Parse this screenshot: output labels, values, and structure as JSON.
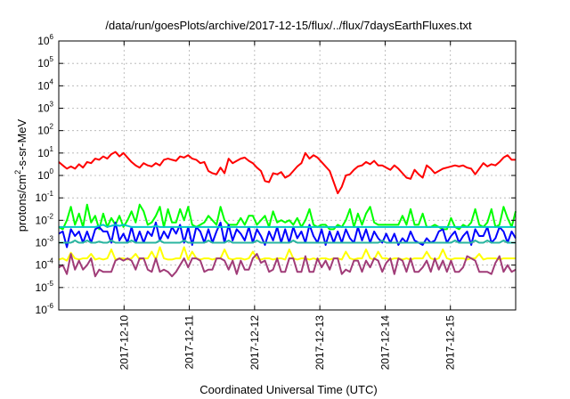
{
  "chart_data": {
    "type": "line",
    "title": "/data/run/goesPlots/archive/2017-12-15/flux/../flux/7daysEarthFluxes.txt",
    "xlabel": "Coordinated Universal Time (UTC)",
    "ylabel": "protons/cm2-s-sr-MeV",
    "y_scale": "log",
    "ylim": [
      1e-06,
      1000000.0
    ],
    "xlim": [
      "2017-12-09 00:00",
      "2017-12-16 00:00"
    ],
    "grid": true,
    "y_ticks": [
      {
        "value": 1e-06,
        "base": "10",
        "exp": "-6"
      },
      {
        "value": 1e-05,
        "base": "10",
        "exp": "-5"
      },
      {
        "value": 0.0001,
        "base": "10",
        "exp": "-4"
      },
      {
        "value": 0.001,
        "base": "10",
        "exp": "-3"
      },
      {
        "value": 0.01,
        "base": "10",
        "exp": "-2"
      },
      {
        "value": 0.1,
        "base": "10",
        "exp": "-1"
      },
      {
        "value": 1,
        "base": "10",
        "exp": "0"
      },
      {
        "value": 10,
        "base": "10",
        "exp": "1"
      },
      {
        "value": 100,
        "base": "10",
        "exp": "2"
      },
      {
        "value": 1000,
        "base": "10",
        "exp": "3"
      },
      {
        "value": 10000,
        "base": "10",
        "exp": "4"
      },
      {
        "value": 100000,
        "base": "10",
        "exp": "5"
      },
      {
        "value": 1000000,
        "base": "10",
        "exp": "6"
      }
    ],
    "x_ticks": [
      {
        "day": 1,
        "label": "2017-12-10"
      },
      {
        "day": 2,
        "label": "2017-12-11"
      },
      {
        "day": 3,
        "label": "2017-12-12"
      },
      {
        "day": 4,
        "label": "2017-12-13"
      },
      {
        "day": 5,
        "label": "2017-12-14"
      },
      {
        "day": 6,
        "label": "2017-12-15"
      }
    ],
    "series": [
      {
        "color": "#ff0000",
        "log_values": [
          0.6,
          0.45,
          0.3,
          0.4,
          0.3,
          0.5,
          0.35,
          0.6,
          0.55,
          0.75,
          0.7,
          0.85,
          0.75,
          0.95,
          1.05,
          0.85,
          1.0,
          0.8,
          0.6,
          0.45,
          0.35,
          0.55,
          0.45,
          0.4,
          0.55,
          0.45,
          0.7,
          0.75,
          0.7,
          0.65,
          0.85,
          0.8,
          0.9,
          0.75,
          0.7,
          0.55,
          0.6,
          0.2,
          0.1,
          0.05,
          0.35,
          0.1,
          0.75,
          0.55,
          0.65,
          0.75,
          0.8,
          0.65,
          0.55,
          0.35,
          0.2,
          -0.25,
          -0.3,
          0.1,
          0.05,
          0.15,
          -0.1,
          0.0,
          0.2,
          0.4,
          0.55,
          1.0,
          0.75,
          0.9,
          0.8,
          0.6,
          0.4,
          0.2,
          -0.3,
          -0.8,
          -0.5,
          0.0,
          0.05,
          0.25,
          0.4,
          0.45,
          0.6,
          0.5,
          0.65,
          0.45,
          0.45,
          0.35,
          0.25,
          0.45,
          0.3,
          0.1,
          -0.1,
          -0.15,
          0.25,
          0.05,
          -0.1,
          0.45,
          0.3,
          0.1,
          0.2,
          0.3,
          0.35,
          0.4,
          0.45,
          0.4,
          0.45,
          0.35,
          0.3,
          0.05,
          0.3,
          0.55,
          0.4,
          0.5,
          0.45,
          0.6,
          0.8,
          0.9,
          0.7,
          0.7
        ]
      },
      {
        "color": "#00ff00",
        "log_values": [
          -2.3,
          -2.4,
          -2.0,
          -1.4,
          -2.2,
          -1.7,
          -2.3,
          -1.3,
          -2.1,
          -1.8,
          -2.4,
          -1.7,
          -2.3,
          -1.9,
          -2.2,
          -1.8,
          -2.3,
          -2.0,
          -1.6,
          -2.1,
          -1.3,
          -1.6,
          -2.2,
          -2.1,
          -1.8,
          -1.4,
          -2.3,
          -1.5,
          -2.1,
          -2.1,
          -1.5,
          -2.0,
          -1.4,
          -2.2,
          -2.3,
          -2.2,
          -2.1,
          -1.8,
          -2.0,
          -2.2,
          -1.4,
          -2.0,
          -2.2,
          -2.2,
          -2.2,
          -1.9,
          -2.2,
          -1.8,
          -1.8,
          -2.2,
          -2.0,
          -1.8,
          -2.3,
          -1.6,
          -2.1,
          -2.0,
          -2.1,
          -2.0,
          -2.2,
          -1.9,
          -2.3,
          -2.0,
          -1.5,
          -2.2,
          -2.3,
          -2.2,
          -2.2,
          -2.4,
          -2.4,
          -2.2,
          -2.3,
          -2.0,
          -1.5,
          -2.3,
          -1.7,
          -2.2,
          -1.7,
          -1.4,
          -2.1,
          -2.2,
          -2.2,
          -2.2,
          -2.2,
          -2.2,
          -2.2,
          -1.8,
          -2.2,
          -1.5,
          -2.2,
          -2.2,
          -1.7,
          -2.3,
          -2.3,
          -2.2,
          -2.3,
          -2.4,
          -2.4,
          -1.9,
          -2.3,
          -2.4,
          -2.2,
          -2.3,
          -2.1,
          -1.5,
          -2.2,
          -2.3,
          -2.1,
          -1.5,
          -2.3,
          -2.2,
          -1.4,
          -1.9,
          -2.3,
          -1.6
        ]
      },
      {
        "color": "#0000ff",
        "log_values": [
          -2.6,
          -2.5,
          -3.2,
          -2.4,
          -2.7,
          -2.5,
          -3.0,
          -2.5,
          -3.0,
          -2.4,
          -2.3,
          -2.5,
          -2.5,
          -3.0,
          -2.1,
          -2.9,
          -2.6,
          -3.0,
          -2.3,
          -3.0,
          -2.5,
          -3.0,
          -2.5,
          -2.7,
          -2.1,
          -2.9,
          -2.5,
          -2.8,
          -2.3,
          -2.6,
          -2.2,
          -3.0,
          -2.3,
          -3.1,
          -2.3,
          -2.5,
          -3.0,
          -2.4,
          -3.0,
          -2.5,
          -2.1,
          -3.0,
          -2.2,
          -2.9,
          -2.4,
          -2.6,
          -2.9,
          -2.3,
          -3.0,
          -2.4,
          -2.7,
          -3.1,
          -2.5,
          -2.9,
          -2.3,
          -3.0,
          -2.4,
          -3.0,
          -2.3,
          -2.8,
          -2.5,
          -3.0,
          -2.2,
          -2.7,
          -3.0,
          -2.4,
          -3.1,
          -2.5,
          -3.0,
          -2.5,
          -3.0,
          -2.4,
          -2.8,
          -3.0,
          -2.3,
          -2.9,
          -2.4,
          -3.0,
          -2.5,
          -2.8,
          -3.0,
          -2.6,
          -3.0,
          -2.6,
          -3.1,
          -2.8,
          -3.0,
          -2.5,
          -2.9,
          -3.0,
          -3.1,
          -2.8,
          -3.0,
          -2.9,
          -2.5,
          -2.4,
          -3.0,
          -2.7,
          -2.5,
          -3.0,
          -2.7,
          -2.5,
          -3.1,
          -2.4,
          -2.7,
          -2.7,
          -2.3,
          -3.0,
          -2.8,
          -2.3,
          -2.5,
          -3.0,
          -2.5,
          -2.8
        ]
      },
      {
        "color": "#00c8c8",
        "log_values": [
          -2.3,
          -2.3,
          -2.3,
          -2.3,
          -2.3,
          -2.3,
          -2.3,
          -2.3,
          -2.3,
          -2.3,
          -2.25,
          -2.2,
          -2.3,
          -2.25,
          -2.2,
          -2.25,
          -2.2,
          -2.25,
          -2.3,
          -2.3,
          -2.3,
          -2.3,
          -2.3,
          -2.3,
          -2.25,
          -2.3,
          -2.3,
          -2.3,
          -2.3,
          -2.3,
          -2.3,
          -2.3,
          -2.3,
          -2.3,
          -2.3,
          -2.3,
          -2.3,
          -2.3,
          -2.3,
          -2.3,
          -2.3,
          -2.3,
          -2.3,
          -2.3,
          -2.3,
          -2.3,
          -2.3,
          -2.3,
          -2.3,
          -2.3,
          -2.3,
          -2.3,
          -2.3,
          -2.3,
          -2.3,
          -2.3,
          -2.3,
          -2.3,
          -2.3,
          -2.3,
          -2.3,
          -2.3,
          -2.3,
          -2.3,
          -2.3,
          -2.3,
          -2.3,
          -2.3,
          -2.3,
          -2.3,
          -2.3,
          -2.3,
          -2.3,
          -2.3,
          -2.3,
          -2.3,
          -2.3,
          -2.3,
          -2.3,
          -2.3,
          -2.3,
          -2.3,
          -2.3,
          -2.3,
          -2.3,
          -2.3,
          -2.3,
          -2.3,
          -2.3,
          -2.3,
          -2.3,
          -2.3,
          -2.3,
          -2.3,
          -2.3,
          -2.3,
          -2.3,
          -2.3,
          -2.3,
          -2.3,
          -2.3,
          -2.3,
          -2.3,
          -2.3,
          -2.3,
          -2.3,
          -2.3,
          -2.3,
          -2.3,
          -2.3,
          -2.3,
          -2.3,
          -2.3,
          -2.3
        ]
      },
      {
        "color": "#2ab5a0",
        "log_values": [
          -3.0,
          -3.0,
          -3.0,
          -3.0,
          -2.9,
          -3.0,
          -3.0,
          -2.9,
          -3.0,
          -3.0,
          -2.95,
          -3.0,
          -3.0,
          -2.9,
          -3.0,
          -3.0,
          -3.0,
          -3.0,
          -2.9,
          -3.0,
          -3.0,
          -3.0,
          -3.0,
          -3.0,
          -3.0,
          -2.9,
          -3.0,
          -3.0,
          -3.0,
          -3.0,
          -3.0,
          -2.9,
          -3.0,
          -3.0,
          -3.0,
          -3.0,
          -3.0,
          -2.9,
          -3.0,
          -3.0,
          -3.0,
          -3.0,
          -2.9,
          -3.0,
          -3.0,
          -3.0,
          -3.0,
          -3.0,
          -3.0,
          -2.9,
          -3.0,
          -3.0,
          -3.0,
          -3.0,
          -3.0,
          -3.0,
          -3.0,
          -3.0,
          -2.9,
          -3.0,
          -3.0,
          -3.0,
          -3.0,
          -3.0,
          -3.0,
          -3.0,
          -3.0,
          -3.0,
          -3.0,
          -3.0,
          -3.0,
          -3.0,
          -3.0,
          -3.0,
          -3.0,
          -3.0,
          -3.0,
          -3.0,
          -3.0,
          -3.0,
          -2.9,
          -3.0,
          -3.0,
          -3.0,
          -3.0,
          -3.0,
          -3.0,
          -3.0,
          -3.0,
          -3.0,
          -3.0,
          -3.0,
          -3.0,
          -3.0,
          -3.0,
          -3.0,
          -3.0,
          -3.0,
          -2.9,
          -3.0,
          -3.0,
          -3.0,
          -3.0,
          -2.9,
          -3.0,
          -3.0,
          -2.9,
          -3.0,
          -3.0,
          -3.0,
          -2.9,
          -3.0,
          -3.0,
          -3.0
        ]
      },
      {
        "color": "#ffff00",
        "log_values": [
          -3.75,
          -3.7,
          -3.8,
          -3.45,
          -3.7,
          -3.75,
          -3.7,
          -3.7,
          -3.5,
          -3.75,
          -3.7,
          -3.75,
          -3.7,
          -3.3,
          -3.75,
          -3.7,
          -3.7,
          -3.75,
          -3.7,
          -3.5,
          -3.75,
          -3.7,
          -3.7,
          -3.4,
          -3.75,
          -3.2,
          -3.7,
          -3.75,
          -3.75,
          -3.7,
          -3.7,
          -3.2,
          -3.75,
          -3.4,
          -3.7,
          -3.75,
          -3.7,
          -3.7,
          -3.75,
          -3.7,
          -3.7,
          -3.3,
          -3.7,
          -3.75,
          -3.7,
          -3.7,
          -3.75,
          -3.7,
          -3.4,
          -3.7,
          -3.75,
          -3.7,
          -3.7,
          -3.75,
          -3.7,
          -3.7,
          -3.75,
          -3.3,
          -3.7,
          -3.75,
          -3.7,
          -3.7,
          -3.75,
          -3.7,
          -3.75,
          -3.7,
          -3.7,
          -3.75,
          -3.7,
          -3.7,
          -3.75,
          -3.4,
          -3.7,
          -3.75,
          -3.7,
          -3.7,
          -3.3,
          -3.7,
          -3.75,
          -3.4,
          -3.7,
          -3.7,
          -3.75,
          -3.7,
          -3.7,
          -3.75,
          -3.7,
          -3.75,
          -3.7,
          -3.7,
          -3.7,
          -3.4,
          -3.7,
          -3.75,
          -3.7,
          -3.3,
          -3.7,
          -3.75,
          -3.7,
          -3.7,
          -3.7,
          -3.75,
          -3.7,
          -3.7,
          -3.5,
          -3.75,
          -3.7,
          -3.7,
          -3.7,
          -3.75,
          -3.7,
          -3.7,
          -3.7,
          -3.7
        ]
      },
      {
        "color": "#a03c78",
        "log_values": [
          -4.1,
          -4.0,
          -4.4,
          -3.5,
          -4.2,
          -3.8,
          -4.2,
          -4.0,
          -3.7,
          -4.5,
          -4.2,
          -4.3,
          -4.3,
          -4.3,
          -3.8,
          -3.7,
          -3.8,
          -3.7,
          -3.8,
          -4.2,
          -3.7,
          -3.7,
          -4.2,
          -4.3,
          -3.7,
          -4.3,
          -4.2,
          -4.3,
          -4.5,
          -4.3,
          -4.0,
          -3.7,
          -4.1,
          -3.7,
          -3.7,
          -3.8,
          -4.3,
          -4.2,
          -4.2,
          -3.7,
          -3.7,
          -3.8,
          -4.2,
          -3.8,
          -4.4,
          -3.8,
          -4.2,
          -4.2,
          -3.7,
          -3.5,
          -3.9,
          -3.8,
          -4.3,
          -4.2,
          -3.7,
          -4.3,
          -4.3,
          -3.7,
          -3.7,
          -4.3,
          -4.3,
          -3.6,
          -4.3,
          -4.3,
          -3.7,
          -4.1,
          -3.8,
          -4.2,
          -3.7,
          -3.7,
          -4.4,
          -4.2,
          -4.3,
          -3.8,
          -3.8,
          -4.3,
          -3.8,
          -4.1,
          -3.7,
          -3.8,
          -4.3,
          -3.9,
          -3.7,
          -4.4,
          -3.7,
          -3.8,
          -4.3,
          -3.7,
          -4.3,
          -4.3,
          -4.1,
          -3.8,
          -4.3,
          -3.7,
          -4.2,
          -3.8,
          -4.3,
          -3.8,
          -4.3,
          -4.3,
          -4.1,
          -3.6,
          -3.7,
          -3.8,
          -4.3,
          -4.3,
          -4.3,
          -4.4,
          -3.9,
          -3.6,
          -4.3,
          -4.0,
          -4.3,
          -4.2
        ]
      }
    ]
  }
}
